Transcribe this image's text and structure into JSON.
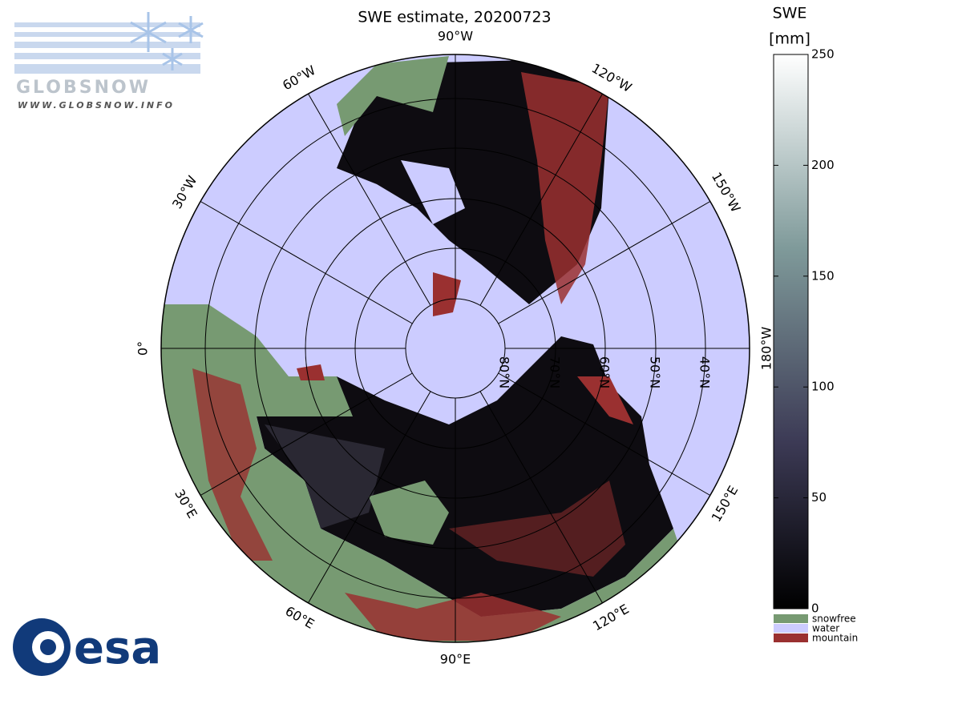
{
  "title": "SWE estimate, 20200723",
  "longitude_labels": [
    "90°W",
    "120°W",
    "150°W",
    "180°W",
    "150°E",
    "120°E",
    "90°E",
    "60°E",
    "30°E",
    "0°",
    "30°W",
    "60°W"
  ],
  "latitude_labels": [
    "80°N",
    "70°N",
    "60°N",
    "50°N",
    "40°N"
  ],
  "colorbar": {
    "title": "SWE",
    "unit": "[mm]",
    "range": [
      0,
      250
    ],
    "ticks": [
      0,
      50,
      100,
      150,
      200,
      250
    ],
    "colors": [
      "#000000",
      "#ffffff"
    ]
  },
  "legend": [
    {
      "label": "snowfree",
      "color": "#779a72"
    },
    {
      "label": "water",
      "color": "#ccccff"
    },
    {
      "label": "mountain",
      "color": "#9a3030"
    }
  ],
  "logos": {
    "globsnow": "GLOBSNOW",
    "url": "WWW.GLOBSNOW.INFO",
    "esa": "esa"
  }
}
